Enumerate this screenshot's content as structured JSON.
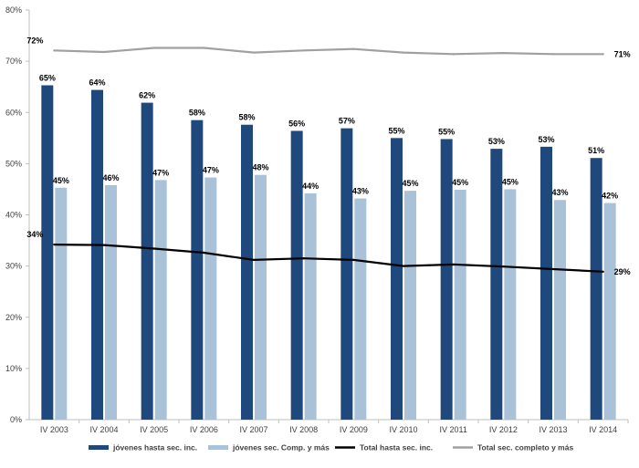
{
  "chart_data": {
    "type": "bar",
    "categories": [
      "IV 2003",
      "IV 2004",
      "IV 2005",
      "IV 2006",
      "IV 2007",
      "IV 2008",
      "IV 2009",
      "IV 2010",
      "IV 2011",
      "IV 2012",
      "IV 2013",
      "IV 2014"
    ],
    "ylim": [
      0,
      80
    ],
    "yticks": [
      0,
      10,
      20,
      30,
      40,
      50,
      60,
      70,
      80
    ],
    "ytick_suffix": "%",
    "grid": false,
    "legend_position": "bottom",
    "series": [
      {
        "name": "jóvenes hasta sec. inc.",
        "kind": "bar",
        "color": "#1f497d",
        "values": [
          65.3,
          64.4,
          61.9,
          58.5,
          57.6,
          56.4,
          56.9,
          55.0,
          54.8,
          52.9,
          53.3,
          51.1
        ],
        "labels": [
          "65%",
          "64%",
          "62%",
          "58%",
          "58%",
          "56%",
          "57%",
          "55%",
          "55%",
          "53%",
          "53%",
          "51%"
        ]
      },
      {
        "name": "jóvenes sec. Comp. y más",
        "kind": "bar",
        "color": "#a9c2d8",
        "values": [
          45.3,
          45.8,
          46.8,
          47.3,
          47.8,
          44.2,
          43.2,
          44.7,
          44.9,
          45.0,
          42.9,
          42.3
        ],
        "labels": [
          "45%",
          "46%",
          "47%",
          "47%",
          "48%",
          "44%",
          "43%",
          "45%",
          "45%",
          "45%",
          "43%",
          "42%"
        ]
      },
      {
        "name": "Total hasta sec. inc.",
        "kind": "line",
        "color": "#000000",
        "values": [
          34.2,
          34.1,
          33.4,
          32.6,
          31.2,
          31.5,
          31.2,
          30.0,
          30.3,
          29.9,
          29.4,
          28.9
        ],
        "labels": [
          "34%",
          "",
          "",
          "",
          "",
          "",
          "",
          "",
          "",
          "",
          "",
          "29%"
        ]
      },
      {
        "name": "Total sec. completo y más",
        "kind": "line",
        "color": "#a0a0a0",
        "values": [
          72.1,
          71.8,
          72.6,
          72.6,
          71.7,
          72.1,
          72.4,
          71.7,
          71.4,
          71.6,
          71.4,
          71.4
        ],
        "labels": [
          "72%",
          "",
          "",
          "",
          "",
          "",
          "",
          "",
          "",
          "",
          "",
          "71%"
        ]
      }
    ]
  }
}
